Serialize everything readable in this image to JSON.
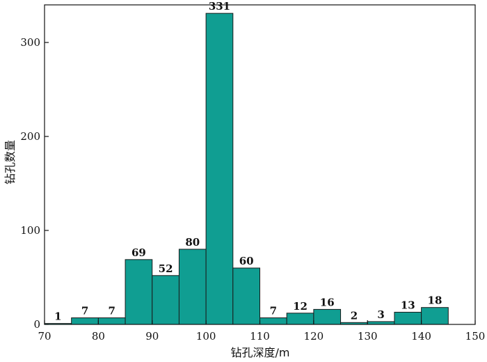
{
  "chart_data": {
    "type": "bar",
    "title": "",
    "xlabel": "钻孔深度/m",
    "ylabel": "钻孔数量",
    "xlim": [
      70,
      150
    ],
    "ylim": [
      0,
      340
    ],
    "x_ticks": [
      70,
      80,
      90,
      100,
      110,
      120,
      130,
      140,
      150
    ],
    "y_ticks": [
      0,
      100,
      200,
      300
    ],
    "bin_width": 5,
    "bins": [
      {
        "start": 70,
        "end": 75,
        "value": 1
      },
      {
        "start": 75,
        "end": 80,
        "value": 7
      },
      {
        "start": 80,
        "end": 85,
        "value": 7
      },
      {
        "start": 85,
        "end": 90,
        "value": 69
      },
      {
        "start": 90,
        "end": 95,
        "value": 52
      },
      {
        "start": 95,
        "end": 100,
        "value": 80
      },
      {
        "start": 100,
        "end": 105,
        "value": 331
      },
      {
        "start": 105,
        "end": 110,
        "value": 60
      },
      {
        "start": 110,
        "end": 115,
        "value": 7
      },
      {
        "start": 115,
        "end": 120,
        "value": 12
      },
      {
        "start": 120,
        "end": 125,
        "value": 16
      },
      {
        "start": 125,
        "end": 130,
        "value": 2
      },
      {
        "start": 130,
        "end": 135,
        "value": 3
      },
      {
        "start": 135,
        "end": 140,
        "value": 13
      },
      {
        "start": 140,
        "end": 145,
        "value": 18
      }
    ],
    "bar_color": "#109e92",
    "bar_edge_color": "#1a1a1a",
    "grid": false,
    "legend": "none"
  }
}
